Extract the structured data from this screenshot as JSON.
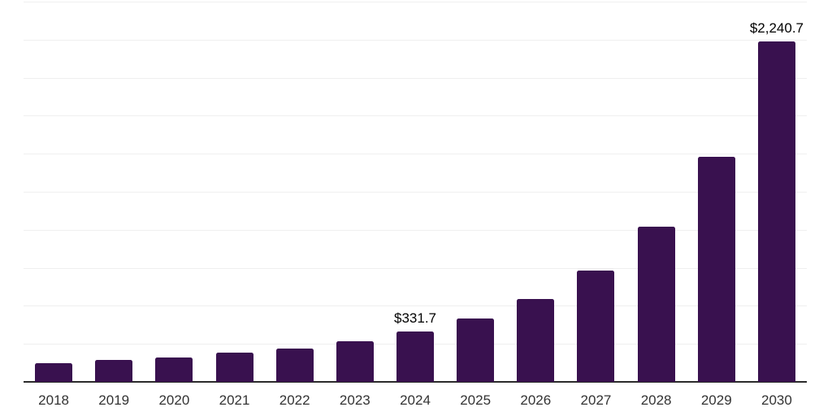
{
  "chart_data": {
    "type": "bar",
    "title": "",
    "xlabel": "",
    "ylabel": "",
    "categories": [
      "2018",
      "2019",
      "2020",
      "2021",
      "2022",
      "2023",
      "2024",
      "2025",
      "2026",
      "2027",
      "2028",
      "2029",
      "2030"
    ],
    "values": [
      124,
      144,
      162,
      194,
      221,
      265,
      331.7,
      418,
      543,
      730,
      1019,
      1481,
      2240.7
    ],
    "value_labels": {
      "2024": "$331.7",
      "2030": "$2,240.7"
    },
    "ylim": [
      0,
      2500
    ],
    "grid_step": 250,
    "grid": "horizontal",
    "legend": "none",
    "y_axis_labels_visible": false,
    "bar_color": "#39114f",
    "gridline_color": "#efefef",
    "axis_line_color": "#2b2b2b",
    "tick_label_color": "#333333",
    "value_label_color": "#000000",
    "background_color": "#ffffff"
  }
}
